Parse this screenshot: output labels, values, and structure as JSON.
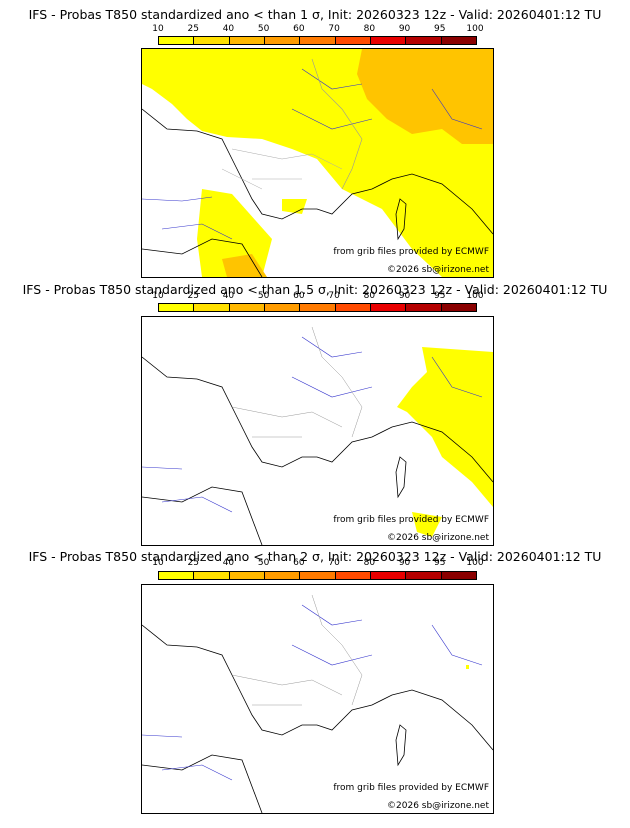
{
  "colorbar": {
    "ticks": [
      "10",
      "25",
      "40",
      "50",
      "60",
      "70",
      "80",
      "90",
      "95",
      "100"
    ],
    "colors": [
      "#ffff00",
      "#ffe000",
      "#ffb800",
      "#ff9c00",
      "#ff7a00",
      "#ff4a00",
      "#e80000",
      "#b40000",
      "#8a0000"
    ]
  },
  "panels": [
    {
      "title": "IFS - Probas T850  standardized ano < than 1 σ, Init: 20260323 12z - Valid: 20260401:12 TU",
      "credit_source": "from grib files provided by ECMWF",
      "credit_copy": "©2026 sb@irizone.net"
    },
    {
      "title": "IFS - Probas T850  standardized ano < than 1.5 σ, Init: 20260323 12z - Valid: 20260401:12 TU",
      "credit_source": "from grib files provided by ECMWF",
      "credit_copy": "©2026 sb@irizone.net"
    },
    {
      "title": "IFS - Probas T850  standardized ano < than 2 σ, Init: 20260323 12z - Valid: 20260401:12 TU",
      "credit_source": "from grib files provided by ECMWF",
      "credit_copy": "©2026 sb@irizone.net"
    }
  ]
}
